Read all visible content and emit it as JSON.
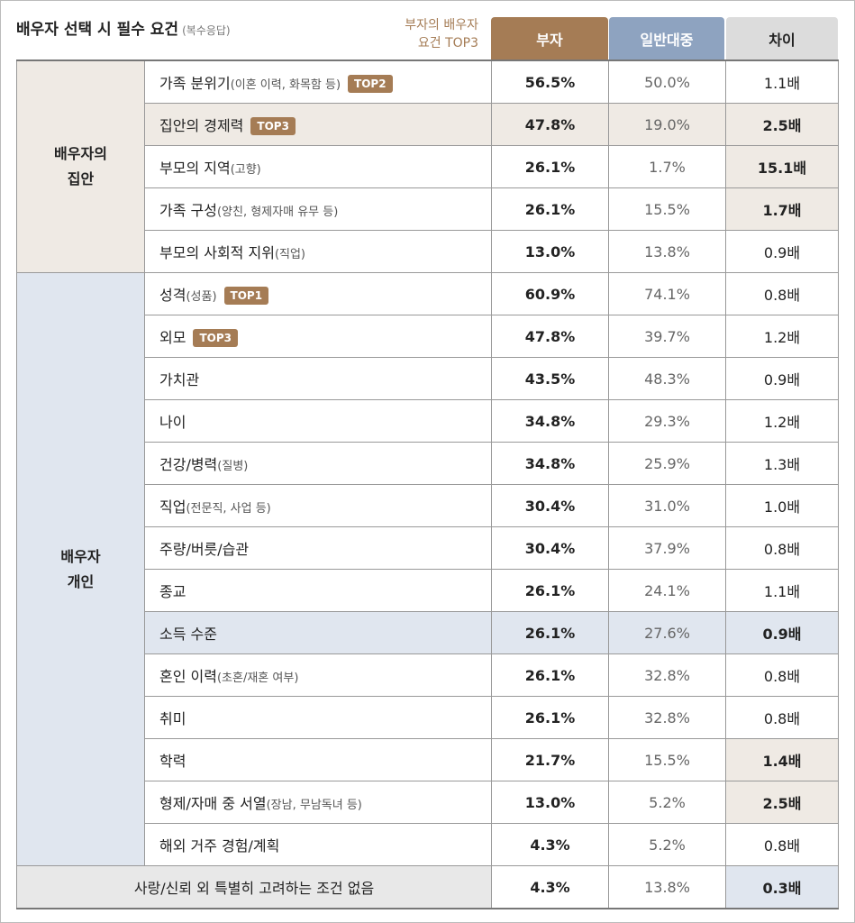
{
  "header": {
    "title": "배우자 선택 시 필수 요건",
    "subtitle": "(복수응답)",
    "top3_label": "부자의 배우자\n요건 TOP3"
  },
  "table": {
    "columns": [
      "부자",
      "일반대중",
      "차이"
    ],
    "groups": [
      {
        "label": "배우자의\n집안",
        "rows": [
          {
            "name": "가족 분위기",
            "note": "(이혼 이력, 화목함 등)",
            "badge": "TOP2",
            "values": [
              "56.5%",
              "50.0%",
              "1.1배"
            ]
          },
          {
            "name": "집안의 경제력",
            "badge": "TOP3",
            "values": [
              "47.8%",
              "19.0%",
              "2.5배"
            ]
          },
          {
            "name": "부모의 지역",
            "note": "(고향)",
            "values": [
              "26.1%",
              "1.7%",
              "15.1배"
            ]
          },
          {
            "name": "가족 구성",
            "note": "(양친, 형제자매 유무 등)",
            "values": [
              "26.1%",
              "15.5%",
              "1.7배"
            ]
          },
          {
            "name": "부모의 사회적 지위",
            "note": "(직업)",
            "values": [
              "13.0%",
              "13.8%",
              "0.9배"
            ]
          }
        ]
      },
      {
        "label": "배우자\n개인",
        "rows": [
          {
            "name": "성격",
            "note": "(성품)",
            "badge": "TOP1",
            "values": [
              "60.9%",
              "74.1%",
              "0.8배"
            ]
          },
          {
            "name": "외모",
            "badge": "TOP3",
            "values": [
              "47.8%",
              "39.7%",
              "1.2배"
            ]
          },
          {
            "name": "가치관",
            "values": [
              "43.5%",
              "48.3%",
              "0.9배"
            ]
          },
          {
            "name": "나이",
            "values": [
              "34.8%",
              "29.3%",
              "1.2배"
            ]
          },
          {
            "name": "건강/병력",
            "note": "(질병)",
            "values": [
              "34.8%",
              "25.9%",
              "1.3배"
            ]
          },
          {
            "name": "직업",
            "note": "(전문직, 사업 등)",
            "values": [
              "30.4%",
              "31.0%",
              "1.0배"
            ]
          },
          {
            "name": "주량/버릇/습관",
            "values": [
              "30.4%",
              "37.9%",
              "0.8배"
            ]
          },
          {
            "name": "종교",
            "values": [
              "26.1%",
              "24.1%",
              "1.1배"
            ]
          },
          {
            "name": "소득 수준",
            "values": [
              "26.1%",
              "27.6%",
              "0.9배"
            ]
          },
          {
            "name": "혼인 이력",
            "note": "(초혼/재혼 여부)",
            "values": [
              "26.1%",
              "32.8%",
              "0.8배"
            ]
          },
          {
            "name": "취미",
            "values": [
              "26.1%",
              "32.8%",
              "0.8배"
            ]
          },
          {
            "name": "학력",
            "values": [
              "21.7%",
              "15.5%",
              "1.4배"
            ]
          },
          {
            "name": "형제/자매 중 서열",
            "note": "(장남, 무남독녀 등)",
            "values": [
              "13.0%",
              "5.2%",
              "2.5배"
            ]
          },
          {
            "name": "해외 거주 경험/계획",
            "values": [
              "4.3%",
              "5.2%",
              "0.8배"
            ]
          }
        ]
      }
    ],
    "footer_row": {
      "name": "사랑/신뢰 외 특별히 고려하는 조건 없음",
      "values": [
        "4.3%",
        "13.8%",
        "0.3배"
      ]
    }
  }
}
